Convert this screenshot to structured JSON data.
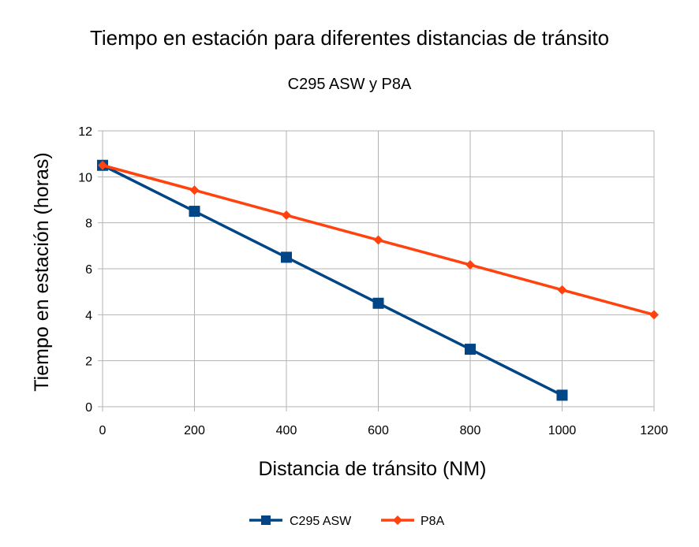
{
  "chart_data": {
    "type": "line",
    "title": "Tiempo en estación para diferentes distancias de tránsito",
    "subtitle": "C295 ASW y P8A",
    "xlabel": "Distancia de tránsito (NM)",
    "ylabel": "Tiempo en estación (horas)",
    "xlim": [
      0,
      1200
    ],
    "ylim": [
      0,
      12
    ],
    "xticks": [
      0,
      200,
      400,
      600,
      800,
      1000,
      1200
    ],
    "yticks": [
      0,
      2,
      4,
      6,
      8,
      10,
      12
    ],
    "grid": true,
    "legend_position": "bottom",
    "series": [
      {
        "name": "C295 ASW",
        "color": "#004586",
        "marker": "square",
        "x": [
          0,
          200,
          400,
          600,
          800,
          1000
        ],
        "values": [
          10.5,
          8.5,
          6.5,
          4.5,
          2.5,
          0.5
        ]
      },
      {
        "name": "P8A",
        "color": "#ff420e",
        "marker": "diamond",
        "x": [
          0,
          200,
          400,
          600,
          800,
          1000,
          1200
        ],
        "values": [
          10.5,
          9.42,
          8.33,
          7.25,
          6.17,
          5.08,
          4.0
        ]
      }
    ]
  }
}
